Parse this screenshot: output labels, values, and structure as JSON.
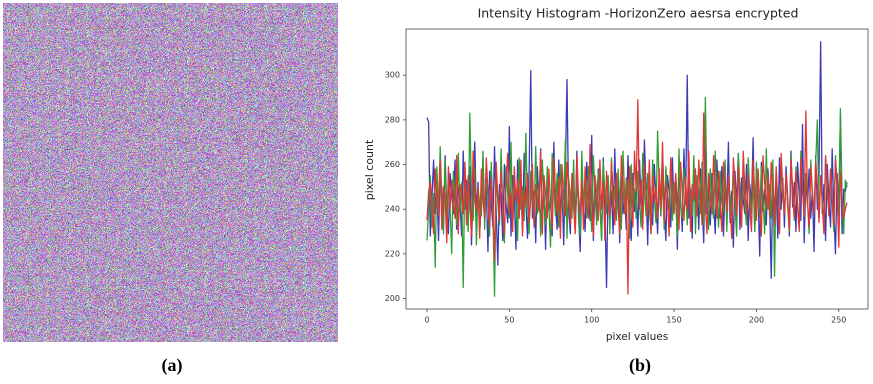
{
  "chart_data": {
    "type": "line",
    "title": "Intensity Histogram -HorizonZero aesrsa encrypted",
    "xlabel": "pixel values",
    "ylabel": "pixel count",
    "captions": [
      "(a)",
      "(b)"
    ],
    "xlim": [
      -12.75,
      267.75
    ],
    "xticks": [
      0,
      50,
      100,
      150,
      200,
      250
    ],
    "ylim": [
      195.3,
      320.7
    ],
    "yticks": [
      200,
      220,
      240,
      260,
      280,
      300
    ],
    "grid": false,
    "x": [
      0,
      1,
      2,
      3,
      4,
      5,
      6,
      7,
      8,
      9,
      10,
      11,
      12,
      13,
      14,
      15,
      16,
      17,
      18,
      19,
      20,
      21,
      22,
      23,
      24,
      25,
      26,
      27,
      28,
      29,
      30,
      31,
      32,
      33,
      34,
      35,
      36,
      37,
      38,
      39,
      40,
      41,
      42,
      43,
      44,
      45,
      46,
      47,
      48,
      49,
      50,
      51,
      52,
      53,
      54,
      55,
      56,
      57,
      58,
      59,
      60,
      61,
      62,
      63,
      64,
      65,
      66,
      67,
      68,
      69,
      70,
      71,
      72,
      73,
      74,
      75,
      76,
      77,
      78,
      79,
      80,
      81,
      82,
      83,
      84,
      85,
      86,
      87,
      88,
      89,
      90,
      91,
      92,
      93,
      94,
      95,
      96,
      97,
      98,
      99,
      100,
      101,
      102,
      103,
      104,
      105,
      106,
      107,
      108,
      109,
      110,
      111,
      112,
      113,
      114,
      115,
      116,
      117,
      118,
      119,
      120,
      121,
      122,
      123,
      124,
      125,
      126,
      127,
      128,
      129,
      130,
      131,
      132,
      133,
      134,
      135,
      136,
      137,
      138,
      139,
      140,
      141,
      142,
      143,
      144,
      145,
      146,
      147,
      148,
      149,
      150,
      151,
      152,
      153,
      154,
      155,
      156,
      157,
      158,
      159,
      160,
      161,
      162,
      163,
      164,
      165,
      166,
      167,
      168,
      169,
      170,
      171,
      172,
      173,
      174,
      175,
      176,
      177,
      178,
      179,
      180,
      181,
      182,
      183,
      184,
      185,
      186,
      187,
      188,
      189,
      190,
      191,
      192,
      193,
      194,
      195,
      196,
      197,
      198,
      199,
      200,
      201,
      202,
      203,
      204,
      205,
      206,
      207,
      208,
      209,
      210,
      211,
      212,
      213,
      214,
      215,
      216,
      217,
      218,
      219,
      220,
      221,
      222,
      223,
      224,
      225,
      226,
      227,
      228,
      229,
      230,
      231,
      232,
      233,
      234,
      235,
      236,
      237,
      238,
      239,
      240,
      241,
      242,
      243,
      244,
      245,
      246,
      247,
      248,
      249,
      250,
      251,
      252,
      253,
      254,
      255
    ],
    "series": [
      {
        "color": "#3b3bb5",
        "values": [
          281,
          279,
          228,
          245,
          262,
          238,
          251,
          226,
          259,
          248,
          233,
          264,
          241,
          229,
          256,
          247,
          238,
          262,
          231,
          250,
          244,
          228,
          266,
          240,
          253,
          235,
          259,
          224,
          248,
          270,
          237,
          252,
          229,
          245,
          263,
          236,
          250,
          221,
          257,
          243,
          232,
          268,
          239,
          215,
          251,
          246,
          226,
          260,
          242,
          234,
          277,
          228,
          255,
          247,
          222,
          262,
          238,
          251,
          230,
          265,
          244,
          227,
          257,
          302,
          236,
          248,
          225,
          259,
          241,
          267,
          233,
          250,
          222,
          256,
          239,
          245,
          228,
          270,
          243,
          231,
          262,
          237,
          249,
          224,
          258,
          298,
          240,
          229,
          253,
          246,
          233,
          266,
          238,
          221,
          255,
          242,
          230,
          261,
          247,
          235,
          273,
          226,
          251,
          239,
          258,
          244,
          227,
          263,
          241,
          205,
          254,
          236,
          248,
          229,
          267,
          240,
          252,
          225,
          259,
          238,
          246,
          231,
          264,
          242,
          226,
          256,
          239,
          250,
          228,
          262,
          243,
          235,
          271,
          249,
          224,
          257,
          240,
          233,
          260,
          245,
          229,
          254,
          237,
          266,
          241,
          226,
          255,
          248,
          232,
          263,
          239,
          251,
          222,
          258,
          244,
          230,
          267,
          242,
          300,
          236,
          249,
          227,
          261,
          240,
          254,
          231,
          258,
          245,
          225,
          268,
          238,
          250,
          233,
          256,
          243,
          229,
          262,
          246,
          236,
          259,
          228,
          252,
          240,
          270,
          234,
          248,
          223,
          257,
          241,
          265,
          231,
          254,
          244,
          238,
          260,
          226,
          251,
          242,
          272,
          230,
          255,
          247,
          219,
          261,
          239,
          249,
          233,
          258,
          243,
          209,
          256,
          237,
          250,
          227,
          263,
          240,
          254,
          232,
          259,
          245,
          228,
          266,
          241,
          252,
          230,
          261,
          246,
          235,
          278,
          225,
          253,
          242,
          258,
          236,
          249,
          221,
          264,
          240,
          255,
          315,
          238,
          251,
          226,
          260,
          244,
          232,
          267,
          239,
          220,
          256,
          241,
          282,
          229,
          249,
          248,
          252
        ]
      },
      {
        "color": "#2f9e35",
        "values": [
          226,
          240,
          255,
          232,
          247,
          214,
          259,
          238,
          268,
          244,
          229,
          262,
          236,
          251,
          241,
          220,
          257,
          245,
          233,
          265,
          239,
          252,
          205,
          260,
          243,
          230,
          283,
          248,
          235,
          258,
          224,
          250,
          242,
          237,
          266,
          231,
          254,
          246,
          228,
          261,
          239,
          201,
          256,
          243,
          233,
          267,
          240,
          225,
          259,
          247,
          236,
          270,
          231,
          253,
          244,
          226,
          263,
          240,
          250,
          235,
          274,
          242,
          229,
          257,
          245,
          234,
          268,
          238,
          252,
          228,
          262,
          246,
          233,
          259,
          241,
          223,
          265,
          249,
          237,
          256,
          232,
          260,
          244,
          239,
          271,
          227,
          254,
          246,
          236,
          262,
          231,
          250,
          243,
          228,
          266,
          241,
          253,
          236,
          259,
          245,
          230,
          264,
          248,
          233,
          257,
          242,
          226,
          261,
          247,
          238,
          255,
          229,
          263,
          241,
          250,
          235,
          258,
          244,
          231,
          266,
          246,
          238,
          253,
          227,
          260,
          242,
          249,
          236,
          257,
          243,
          232,
          265,
          248,
          237,
          256,
          241,
          229,
          262,
          245,
          234,
          275,
          250,
          238,
          254,
          231,
          259,
          246,
          240,
          263,
          235,
          252,
          244,
          228,
          267,
          241,
          236,
          258,
          249,
          233,
          260,
          242,
          237,
          264,
          229,
          255,
          247,
          238,
          261,
          233,
          290,
          245,
          231,
          258,
          243,
          236,
          266,
          248,
          232,
          257,
          244,
          239,
          262,
          230,
          253,
          246,
          237,
          260,
          242,
          228,
          265,
          249,
          235,
          256,
          241,
          233,
          263,
          247,
          238,
          254,
          230,
          261,
          244,
          236,
          259,
          245,
          229,
          267,
          240,
          251,
          236,
          262,
          210,
          257,
          243,
          232,
          260,
          246,
          238,
          255,
          241,
          230,
          264,
          248,
          235,
          259,
          242,
          233,
          266,
          250,
          237,
          256,
          244,
          229,
          262,
          247,
          238,
          261,
          280,
          236,
          254,
          245,
          232,
          263,
          248,
          239,
          258,
          243,
          230,
          264,
          251,
          237,
          285,
          246,
          229,
          253,
          250
        ]
      },
      {
        "color": "#e23636",
        "values": [
          235,
          248,
          252,
          241,
          229,
          258,
          244,
          237,
          262,
          231,
          250,
          246,
          225,
          259,
          240,
          253,
          243,
          236,
          264,
          229,
          251,
          247,
          238,
          261,
          233,
          255,
          242,
          228,
          266,
          245,
          239,
          250,
          227,
          258,
          244,
          236,
          263,
          248,
          232,
          254,
          240,
          217,
          261,
          246,
          235,
          257,
          242,
          229,
          252,
          265,
          238,
          247,
          230,
          259,
          243,
          253,
          236,
          262,
          228,
          249,
          241,
          256,
          234,
          245,
          260,
          232,
          251,
          244,
          239,
          266,
          229,
          255,
          247,
          236,
          258,
          242,
          231,
          263,
          248,
          238,
          254,
          227,
          260,
          245,
          237,
          261,
          249,
          233,
          256,
          241,
          229,
          264,
          246,
          238,
          253,
          231,
          259,
          244,
          236,
          269,
          242,
          228,
          255,
          248,
          235,
          262,
          240,
          252,
          226,
          257,
          243,
          237,
          261,
          247,
          233,
          256,
          241,
          229,
          264,
          250,
          238,
          254,
          202,
          259,
          245,
          232,
          266,
          248,
          289,
          240,
          253,
          231,
          260,
          246,
          237,
          262,
          229,
          255,
          243,
          250,
          236,
          258,
          241,
          270,
          234,
          252,
          245,
          228,
          263,
          249,
          238,
          256,
          242,
          231,
          261,
          247,
          235,
          254,
          240,
          266,
          230,
          251,
          244,
          258,
          237,
          262,
          248,
          233,
          283,
          241,
          229,
          256,
          245,
          238,
          264,
          250,
          236,
          257,
          243,
          230,
          261,
          248,
          239,
          255,
          242,
          227,
          263,
          251,
          237,
          259,
          244,
          232,
          266,
          249,
          238,
          256,
          241,
          230,
          262,
          247,
          235,
          258,
          243,
          228,
          264,
          252,
          240,
          255,
          237,
          261,
          246,
          233,
          259,
          242,
          229,
          265,
          250,
          238,
          256,
          243,
          231,
          262,
          248,
          236,
          257,
          241,
          230,
          263,
          249,
          237,
          284,
          244,
          232,
          259,
          246,
          238,
          261,
          250,
          234,
          255,
          242,
          229,
          264,
          251,
          237,
          258,
          245,
          233,
          262,
          248,
          223,
          257,
          244,
          236,
          240,
          243
        ]
      }
    ]
  }
}
